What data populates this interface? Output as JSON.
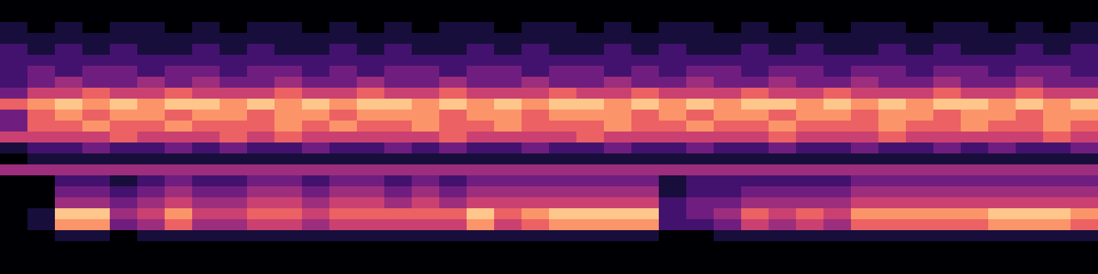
{
  "chart_data": {
    "type": "heatmap",
    "tick_labels": false,
    "color_range": [
      0,
      9
    ],
    "cells": [
      [
        0,
        0,
        0,
        0,
        0,
        0,
        0,
        0,
        0,
        0,
        0,
        0,
        0,
        0,
        0,
        0,
        0,
        0,
        0,
        0,
        0,
        0,
        0,
        0,
        0,
        0,
        0,
        0,
        0,
        0,
        0,
        0,
        0,
        0,
        0,
        0,
        0,
        0,
        0,
        0
      ],
      [
        0,
        0,
        0,
        0,
        0,
        0,
        0,
        0,
        0,
        0,
        0,
        0,
        0,
        0,
        0,
        0,
        0,
        0,
        0,
        0,
        0,
        0,
        0,
        0,
        0,
        0,
        0,
        0,
        0,
        0,
        0,
        0,
        0,
        0,
        0,
        0,
        0,
        0,
        0,
        0
      ],
      [
        1,
        0,
        1,
        0,
        1,
        1,
        0,
        1,
        0,
        1,
        1,
        0,
        1,
        0,
        1,
        0,
        1,
        1,
        0,
        1,
        1,
        0,
        1,
        0,
        1,
        1,
        0,
        1,
        0,
        1,
        0,
        1,
        1,
        0,
        1,
        1,
        0,
        1,
        0,
        1
      ],
      [
        1,
        1,
        1,
        1,
        1,
        1,
        1,
        1,
        1,
        1,
        1,
        1,
        1,
        1,
        1,
        1,
        1,
        1,
        1,
        1,
        1,
        1,
        1,
        1,
        1,
        1,
        1,
        1,
        1,
        1,
        1,
        1,
        1,
        1,
        1,
        1,
        1,
        1,
        1,
        1
      ],
      [
        2,
        1,
        2,
        1,
        2,
        1,
        1,
        2,
        1,
        2,
        1,
        1,
        2,
        1,
        2,
        1,
        1,
        2,
        1,
        2,
        1,
        1,
        2,
        1,
        2,
        1,
        1,
        2,
        1,
        2,
        1,
        1,
        2,
        1,
        2,
        1,
        1,
        2,
        1,
        2
      ],
      [
        2,
        2,
        2,
        2,
        2,
        2,
        2,
        2,
        2,
        2,
        2,
        2,
        2,
        2,
        2,
        2,
        2,
        2,
        2,
        2,
        2,
        2,
        2,
        2,
        2,
        2,
        2,
        2,
        2,
        2,
        2,
        2,
        2,
        2,
        2,
        2,
        2,
        2,
        2,
        2
      ],
      [
        2,
        3,
        2,
        3,
        3,
        2,
        3,
        3,
        2,
        3,
        3,
        2,
        3,
        2,
        3,
        3,
        2,
        3,
        3,
        2,
        3,
        3,
        2,
        3,
        2,
        3,
        3,
        2,
        3,
        3,
        2,
        3,
        3,
        2,
        3,
        3,
        2,
        3,
        3,
        2
      ],
      [
        2,
        3,
        4,
        3,
        3,
        4,
        3,
        4,
        3,
        3,
        4,
        3,
        3,
        4,
        3,
        3,
        4,
        3,
        3,
        4,
        3,
        3,
        4,
        3,
        3,
        4,
        3,
        3,
        4,
        3,
        3,
        4,
        3,
        3,
        4,
        3,
        3,
        4,
        3,
        3
      ],
      [
        3,
        5,
        5,
        6,
        5,
        5,
        6,
        5,
        5,
        5,
        6,
        5,
        5,
        6,
        5,
        5,
        6,
        5,
        5,
        5,
        6,
        5,
        5,
        6,
        5,
        5,
        5,
        6,
        5,
        5,
        6,
        5,
        5,
        5,
        6,
        5,
        5,
        6,
        5,
        5
      ],
      [
        6,
        7,
        8,
        7,
        8,
        7,
        8,
        8,
        7,
        8,
        7,
        8,
        7,
        8,
        8,
        7,
        8,
        7,
        8,
        7,
        8,
        8,
        7,
        8,
        7,
        8,
        7,
        8,
        8,
        7,
        8,
        7,
        8,
        7,
        8,
        8,
        7,
        8,
        7,
        8
      ],
      [
        3,
        6,
        7,
        6,
        7,
        7,
        6,
        7,
        7,
        6,
        7,
        7,
        6,
        7,
        7,
        7,
        6,
        7,
        7,
        6,
        7,
        7,
        7,
        6,
        7,
        6,
        7,
        7,
        6,
        7,
        7,
        6,
        7,
        7,
        6,
        7,
        7,
        6,
        7,
        7
      ],
      [
        3,
        6,
        6,
        7,
        6,
        6,
        7,
        6,
        6,
        6,
        7,
        6,
        7,
        6,
        6,
        7,
        6,
        6,
        7,
        6,
        6,
        6,
        7,
        6,
        6,
        7,
        6,
        6,
        7,
        6,
        6,
        6,
        7,
        6,
        6,
        7,
        6,
        6,
        7,
        6
      ],
      [
        5,
        5,
        5,
        5,
        6,
        5,
        5,
        5,
        6,
        5,
        6,
        5,
        5,
        5,
        5,
        5,
        6,
        5,
        5,
        5,
        5,
        6,
        5,
        5,
        5,
        5,
        5,
        5,
        6,
        5,
        5,
        5,
        6,
        5,
        5,
        5,
        5,
        5,
        6,
        5
      ],
      [
        1,
        2,
        2,
        3,
        2,
        2,
        3,
        2,
        3,
        2,
        2,
        3,
        2,
        2,
        3,
        2,
        3,
        2,
        2,
        3,
        2,
        2,
        3,
        2,
        2,
        3,
        2,
        2,
        3,
        2,
        2,
        3,
        2,
        2,
        3,
        2,
        3,
        2,
        2,
        3
      ],
      [
        0,
        1,
        1,
        1,
        1,
        1,
        1,
        1,
        1,
        1,
        1,
        1,
        1,
        1,
        1,
        1,
        1,
        1,
        1,
        1,
        1,
        1,
        1,
        1,
        1,
        1,
        1,
        1,
        1,
        1,
        1,
        1,
        1,
        1,
        1,
        1,
        1,
        1,
        1,
        1
      ],
      [
        4,
        4,
        4,
        4,
        4,
        4,
        4,
        4,
        4,
        4,
        4,
        4,
        4,
        4,
        4,
        4,
        4,
        4,
        4,
        4,
        4,
        4,
        4,
        4,
        4,
        4,
        4,
        4,
        4,
        4,
        4,
        4,
        4,
        4,
        4,
        4,
        4,
        4,
        4,
        4
      ],
      [
        0,
        0,
        2,
        2,
        1,
        2,
        3,
        2,
        2,
        3,
        3,
        2,
        3,
        3,
        2,
        3,
        2,
        3,
        3,
        3,
        3,
        3,
        3,
        3,
        1,
        2,
        2,
        2,
        2,
        2,
        2,
        3,
        3,
        3,
        3,
        3,
        3,
        3,
        3,
        3
      ],
      [
        0,
        0,
        3,
        3,
        2,
        3,
        4,
        3,
        3,
        4,
        4,
        3,
        4,
        4,
        3,
        4,
        3,
        4,
        4,
        4,
        4,
        4,
        4,
        4,
        1,
        2,
        2,
        3,
        3,
        3,
        3,
        4,
        4,
        4,
        4,
        4,
        4,
        4,
        4,
        4
      ],
      [
        0,
        0,
        4,
        4,
        3,
        4,
        5,
        4,
        4,
        5,
        5,
        4,
        5,
        5,
        4,
        5,
        4,
        5,
        5,
        5,
        5,
        5,
        5,
        5,
        2,
        3,
        3,
        4,
        4,
        4,
        4,
        5,
        5,
        5,
        5,
        5,
        5,
        5,
        5,
        5
      ],
      [
        0,
        1,
        8,
        8,
        4,
        5,
        7,
        5,
        5,
        6,
        6,
        5,
        6,
        6,
        6,
        6,
        6,
        8,
        6,
        7,
        8,
        8,
        8,
        8,
        2,
        3,
        4,
        6,
        5,
        6,
        5,
        7,
        7,
        7,
        7,
        7,
        8,
        8,
        8,
        7
      ],
      [
        0,
        1,
        7,
        7,
        3,
        4,
        6,
        4,
        4,
        5,
        5,
        4,
        5,
        5,
        5,
        5,
        5,
        7,
        5,
        6,
        7,
        7,
        7,
        7,
        2,
        2,
        3,
        5,
        4,
        5,
        4,
        6,
        6,
        6,
        6,
        6,
        7,
        7,
        7,
        6
      ],
      [
        0,
        0,
        1,
        1,
        0,
        1,
        1,
        1,
        1,
        1,
        1,
        1,
        1,
        1,
        1,
        1,
        1,
        1,
        1,
        1,
        1,
        1,
        1,
        1,
        0,
        0,
        1,
        1,
        1,
        1,
        1,
        1,
        1,
        1,
        1,
        1,
        1,
        1,
        1,
        1
      ],
      [
        0,
        0,
        0,
        0,
        0,
        0,
        0,
        0,
        0,
        0,
        0,
        0,
        0,
        0,
        0,
        0,
        0,
        0,
        0,
        0,
        0,
        0,
        0,
        0,
        0,
        0,
        0,
        0,
        0,
        0,
        0,
        0,
        0,
        0,
        0,
        0,
        0,
        0,
        0,
        0
      ],
      [
        0,
        0,
        0,
        0,
        0,
        0,
        0,
        0,
        0,
        0,
        0,
        0,
        0,
        0,
        0,
        0,
        0,
        0,
        0,
        0,
        0,
        0,
        0,
        0,
        0,
        0,
        0,
        0,
        0,
        0,
        0,
        0,
        0,
        0,
        0,
        0,
        0,
        0,
        0,
        0
      ],
      [
        0,
        0,
        0,
        0,
        0,
        0,
        0,
        0,
        0,
        0,
        0,
        0,
        0,
        0,
        0,
        0,
        0,
        0,
        0,
        0,
        0,
        0,
        0,
        0,
        0,
        0,
        0,
        0,
        0,
        0,
        0,
        0,
        0,
        0,
        0,
        0,
        0,
        0,
        0,
        0
      ]
    ]
  }
}
